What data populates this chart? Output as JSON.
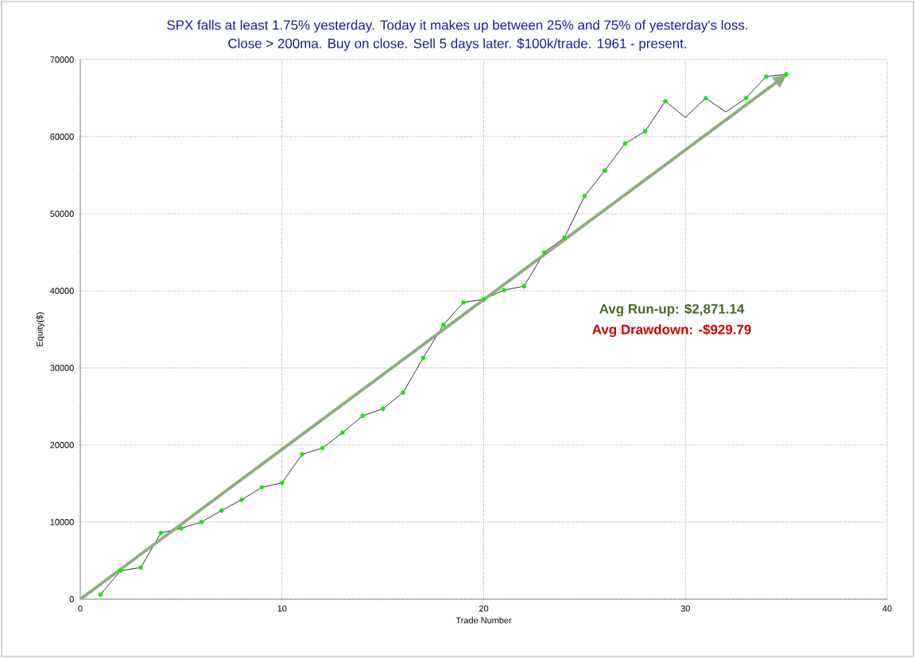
{
  "chart_data": {
    "type": "line",
    "title": "SPX falls at least 1.75% yesterday. Today it makes up between 25% and 75% of yesterday's loss.",
    "subtitle": "Close > 200ma. Buy on close. Sell 5 days later. $100k/trade. 1961 - present.",
    "xlabel": "Trade Number",
    "ylabel": "Equity($)",
    "annotations": [
      "Avg Run-up: $2,871.14",
      "Avg Drawdown: -$929.79"
    ],
    "x": [
      1,
      2,
      3,
      4,
      5,
      6,
      7,
      8,
      9,
      10,
      11,
      12,
      13,
      14,
      15,
      16,
      17,
      18,
      19,
      20,
      21,
      22,
      23,
      24,
      25,
      26,
      27,
      28,
      29,
      30,
      31,
      32,
      33,
      34,
      35
    ],
    "series": [
      {
        "color": "#000000",
        "marker": "none",
        "values": [
          600,
          3700,
          4100,
          8600,
          9200,
          10000,
          11500,
          12900,
          14500,
          15100,
          18800,
          19600,
          21600,
          23800,
          24700,
          26800,
          31300,
          35600,
          38500,
          38900,
          40100,
          40600,
          45000,
          46900,
          52300,
          55600,
          59100,
          60700,
          64600,
          62500,
          65000,
          63200,
          65000,
          67800,
          68100
        ]
      },
      {
        "type": "scatter",
        "color": "#00ee00",
        "marker": "circle",
        "values": [
          600,
          3700,
          4100,
          8600,
          9200,
          10000,
          11500,
          12900,
          14500,
          15100,
          18800,
          19600,
          21600,
          23800,
          24700,
          26800,
          31300,
          35600,
          38500,
          38900,
          40100,
          40600,
          45000,
          46900,
          52300,
          55600,
          59100,
          60700,
          64600,
          null,
          65000,
          null,
          65000,
          67800,
          68100
        ]
      },
      {
        "color": "#8fae7f",
        "marker": "none",
        "x": [
          0,
          35
        ],
        "values": [
          0,
          68000
        ]
      }
    ],
    "xlim": [
      0,
      40
    ],
    "ylim": [
      0,
      70000
    ],
    "xticks": [
      0,
      10,
      20,
      30,
      40
    ],
    "yticks": [
      0,
      10000,
      20000,
      30000,
      40000,
      50000,
      60000,
      70000
    ],
    "grid": true,
    "line_style": "solid"
  }
}
